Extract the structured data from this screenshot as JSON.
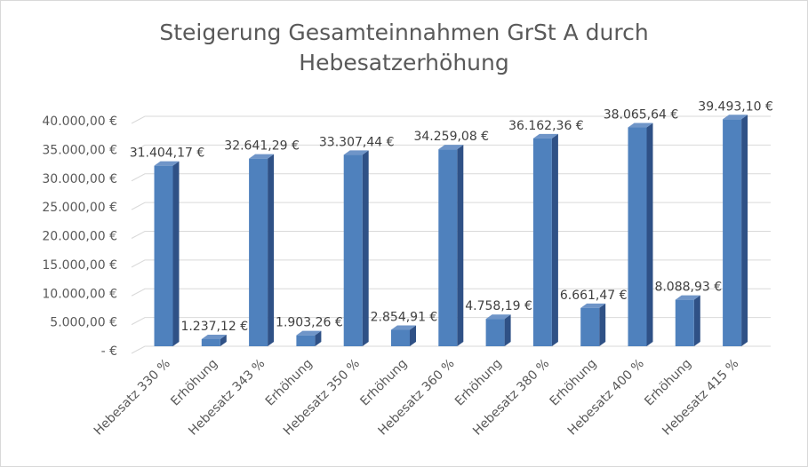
{
  "chart_data": {
    "type": "bar",
    "title_lines": [
      "Steigerung Gesamteinnahmen GrSt A durch",
      "Hebesatzerhöhung"
    ],
    "categories": [
      "Hebesatz 330 %",
      "Erhöhung",
      "Hebesatz 343 %",
      "Erhöhung",
      "Hebesatz 350 %",
      "Erhöhung",
      "Hebesatz 360 %",
      "Erhöhung",
      "Hebesatz 380 %",
      "Erhöhung",
      "Hebesatz 400 %",
      "Erhöhung",
      "Hebesatz 415 %"
    ],
    "values": [
      31404.17,
      1237.12,
      32641.29,
      1903.26,
      33307.44,
      2854.91,
      34259.08,
      4758.19,
      36162.36,
      6661.47,
      38065.64,
      8088.93,
      39493.1
    ],
    "value_labels": [
      "31.404,17 €",
      "1.237,12 €",
      "32.641,29 €",
      "1.903,26 €",
      "33.307,44 €",
      "2.854,91 €",
      "34.259,08 €",
      "4.758,19 €",
      "36.162,36 €",
      "6.661,47 €",
      "38.065,64 €",
      "8.088,93 €",
      "39.493,10 €"
    ],
    "y_ticks": [
      0,
      5000,
      10000,
      15000,
      20000,
      25000,
      30000,
      35000,
      40000
    ],
    "y_tick_labels": [
      "-  €",
      "5.000,00 €",
      "10.000,00 €",
      "15.000,00 €",
      "20.000,00 €",
      "25.000,00 €",
      "30.000,00 €",
      "35.000,00 €",
      "40.000,00 €"
    ],
    "ylim": [
      0,
      40000
    ],
    "xlabel": "",
    "ylabel": "",
    "grid": true,
    "legend": "none",
    "bar_color": "#4f81bd"
  }
}
